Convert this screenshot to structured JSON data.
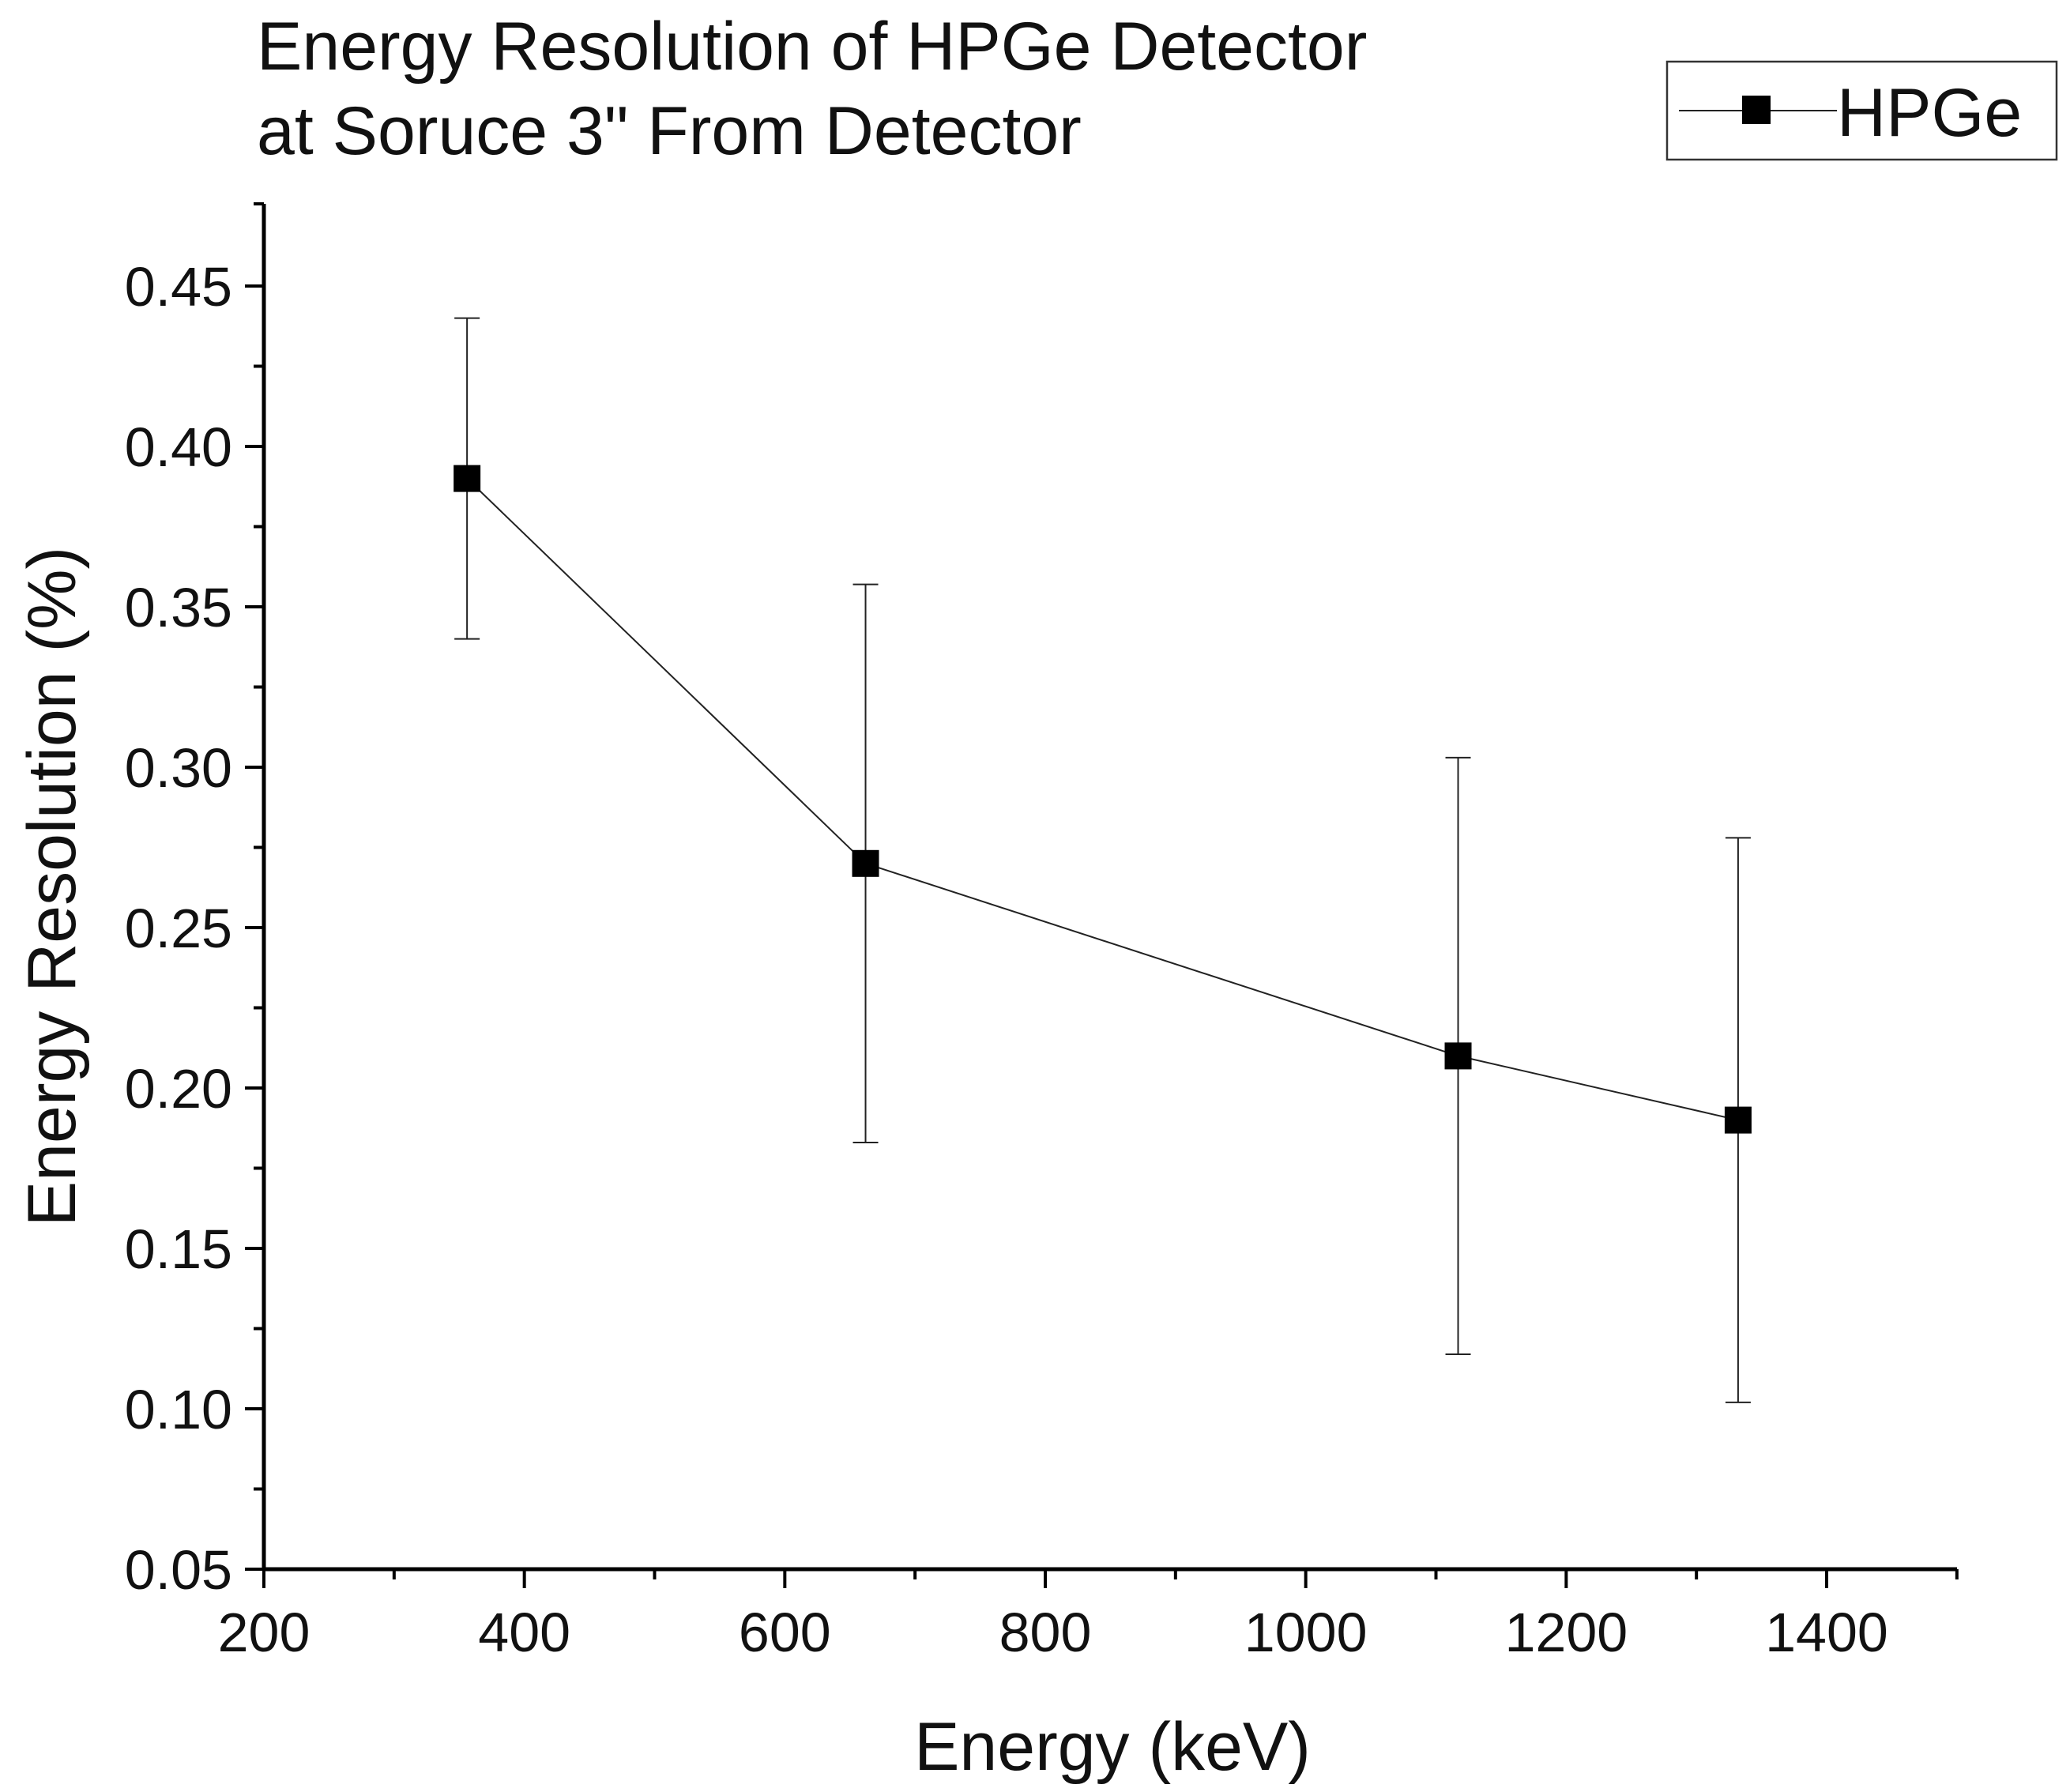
{
  "chart_data": {
    "type": "line",
    "title_lines": [
      "Energy Resolution of HPGe Detector",
      "at Soruce 3\" From Detector"
    ],
    "xlabel": "Energy (keV)",
    "ylabel": "Energy Resolution (%)",
    "xlim": [
      200,
      1500
    ],
    "ylim": [
      0.05,
      0.475
    ],
    "x_ticks": [
      200,
      400,
      600,
      800,
      1000,
      1200,
      1400
    ],
    "x_tick_labels": [
      "200",
      "400",
      "600",
      "800",
      "1000",
      "1200",
      "1400"
    ],
    "x_minor_ticks": [
      300,
      500,
      700,
      900,
      1100,
      1300,
      1500
    ],
    "y_ticks": [
      0.05,
      0.1,
      0.15,
      0.2,
      0.25,
      0.3,
      0.35,
      0.4,
      0.45
    ],
    "y_tick_labels": [
      "0.05",
      "0.10",
      "0.15",
      "0.20",
      "0.25",
      "0.30",
      "0.35",
      "0.40",
      "0.45"
    ],
    "y_minor_ticks": [
      0.075,
      0.125,
      0.175,
      0.225,
      0.275,
      0.325,
      0.375,
      0.425
    ],
    "grid": false,
    "legend_position": "top-right",
    "series": [
      {
        "name": "HPGe",
        "marker": "square",
        "color": "#000000",
        "points": [
          {
            "x": 356,
            "y": 0.39,
            "y_err": 0.05
          },
          {
            "x": 662,
            "y": 0.27,
            "y_err": 0.087
          },
          {
            "x": 1117,
            "y": 0.21,
            "y_err": 0.093
          },
          {
            "x": 1332,
            "y": 0.19,
            "y_err": 0.088
          }
        ]
      }
    ]
  }
}
